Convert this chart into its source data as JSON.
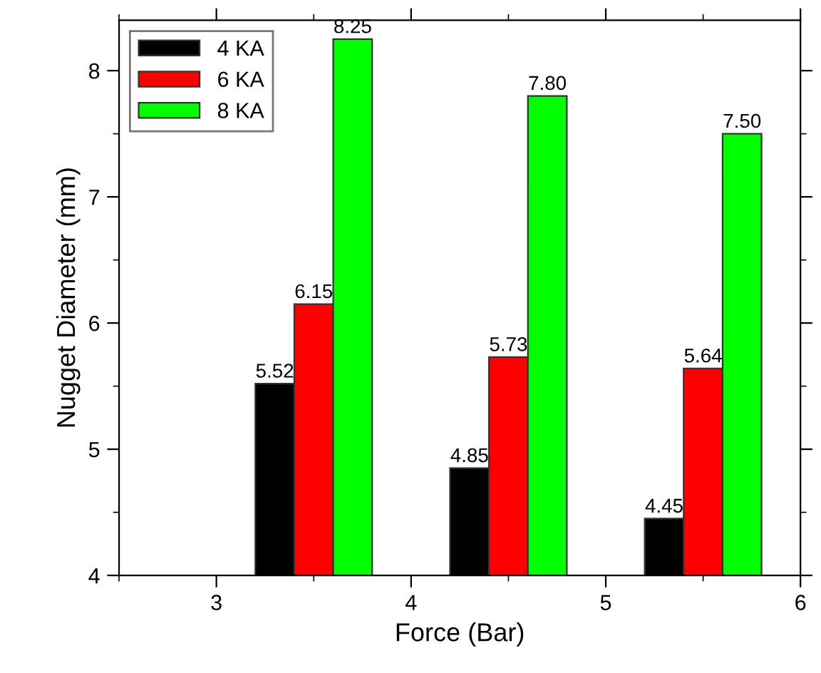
{
  "chart_data": {
    "type": "bar",
    "xlabel": "Force (Bar)",
    "ylabel": "Nugget Diameter (mm)",
    "series": [
      {
        "name": "4 KA",
        "color": "#000000",
        "x": [
          3.3,
          4.3,
          5.3
        ],
        "values": [
          5.52,
          4.85,
          4.45
        ],
        "value_labels": [
          "5.52",
          "4.85",
          "4.45"
        ]
      },
      {
        "name": "6 KA",
        "color": "#ff0000",
        "x": [
          3.5,
          4.5,
          5.5
        ],
        "values": [
          6.15,
          5.73,
          5.64
        ],
        "value_labels": [
          "6.15",
          "5.73",
          "5.64"
        ]
      },
      {
        "name": "8 KA",
        "color": "#00ff00",
        "x": [
          3.7,
          4.7,
          5.7
        ],
        "values": [
          8.25,
          7.8,
          7.5
        ],
        "value_labels": [
          "8.25",
          "7.80",
          "7.50"
        ]
      }
    ],
    "xlim": [
      2.5,
      6
    ],
    "xticks": [
      3,
      4,
      5,
      6
    ],
    "ylim": [
      4,
      8.4
    ],
    "yticks": [
      4,
      5,
      6,
      7,
      8
    ],
    "legend": "top left",
    "grid": false
  }
}
